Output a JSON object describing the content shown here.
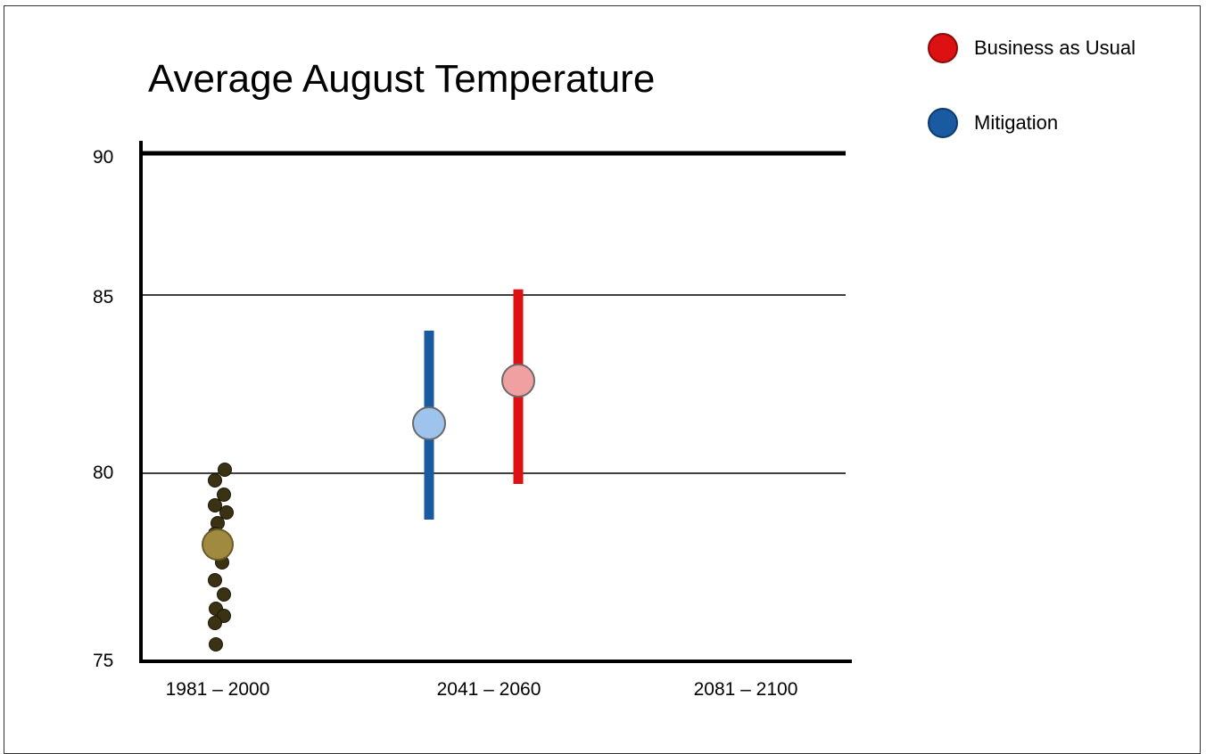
{
  "chart_data": {
    "type": "scatter",
    "title": "Average August Temperature",
    "xlabel": "",
    "ylabel": "",
    "ylim": [
      75,
      90
    ],
    "y_ticks": [
      "90",
      "85",
      "80",
      "75"
    ],
    "y_tick_values": [
      90,
      85,
      80,
      75
    ],
    "categories": [
      "1981 – 2000",
      "2041 – 2060",
      "2081 – 2100"
    ],
    "grid": true,
    "legend_position": "top-right",
    "legend": [
      {
        "name": "Business as Usual",
        "color": "#dd1111"
      },
      {
        "name": "Mitigation",
        "color": "#1a5aa0"
      }
    ],
    "observed": {
      "category": "1981 – 2000",
      "mean": 78.0,
      "points": [
        80.1,
        79.8,
        79.4,
        79.1,
        78.9,
        78.6,
        78.3,
        77.5,
        77.0,
        76.6,
        76.2,
        76.0,
        75.8,
        75.2
      ],
      "point_color": "#3a3212",
      "mean_color": "#a08a40"
    },
    "series": [
      {
        "name": "Mitigation",
        "category": "2041 – 2060",
        "mean": 81.4,
        "low": 78.7,
        "high": 84.0,
        "bar_color": "#1a5aa0",
        "dot_color": "#9ec4ee"
      },
      {
        "name": "Business as Usual",
        "category": "2041 – 2060",
        "mean": 82.6,
        "low": 79.7,
        "high": 85.2,
        "bar_color": "#dd1111",
        "dot_color": "#f0a0a0"
      }
    ]
  }
}
